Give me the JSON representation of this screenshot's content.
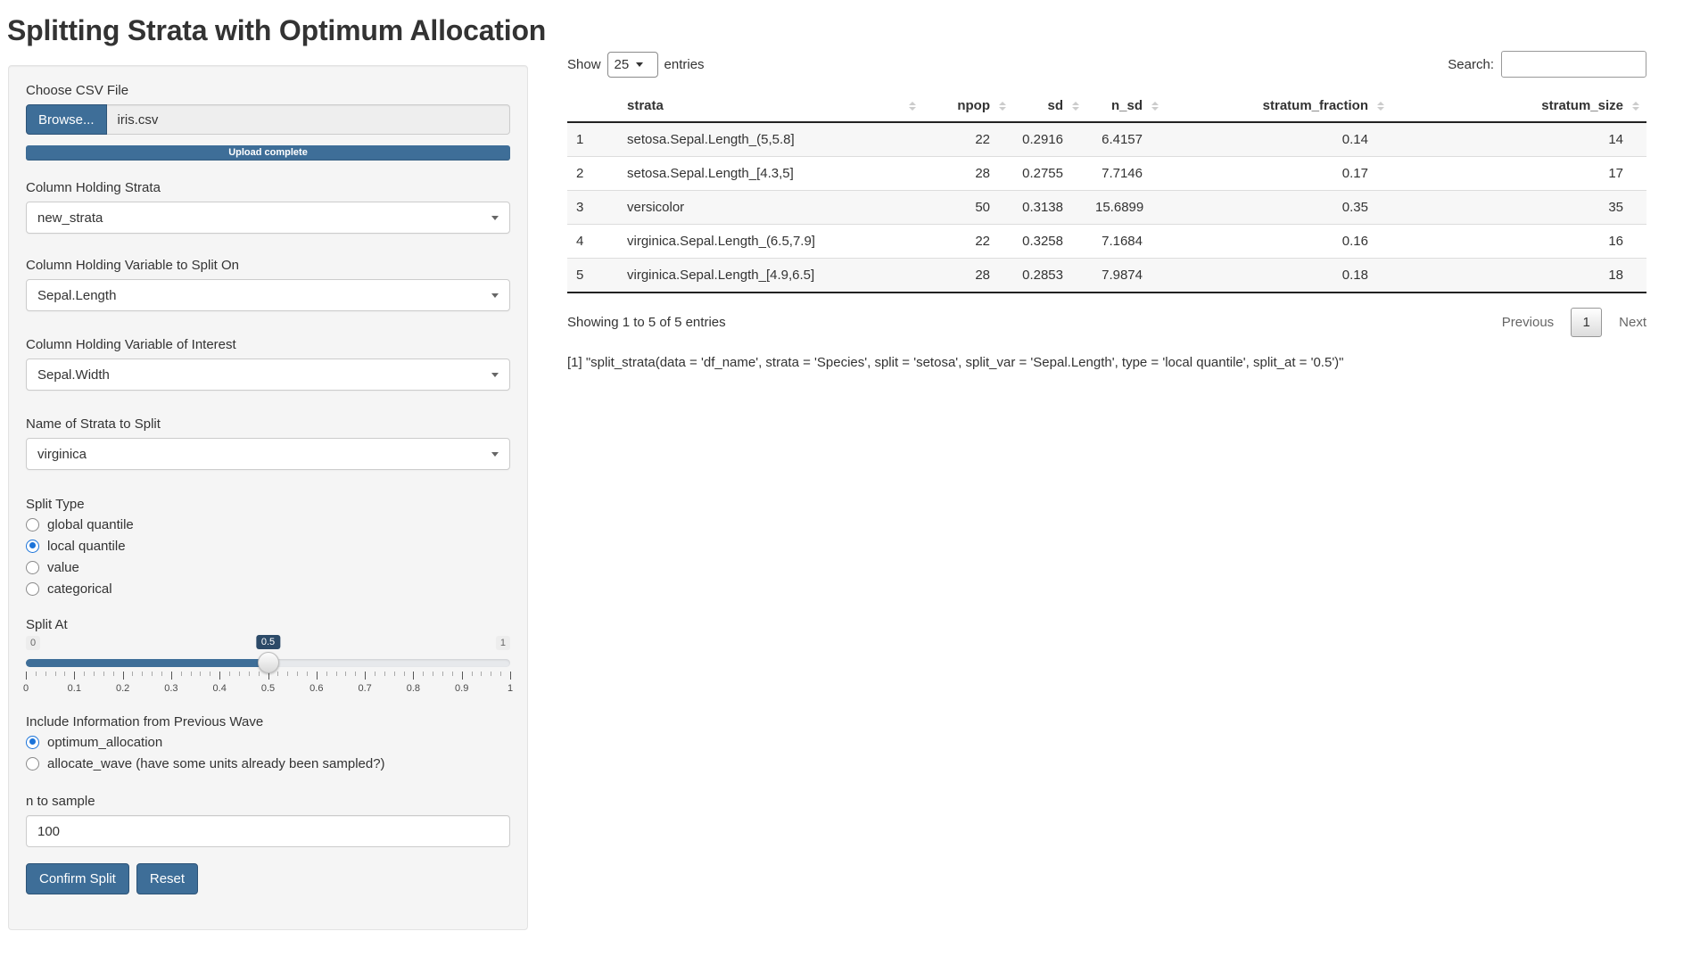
{
  "page": {
    "title": "Splitting Strata with Optimum Allocation"
  },
  "sidebar": {
    "file_upload": {
      "label": "Choose CSV File",
      "browse_label": "Browse...",
      "filename": "iris.csv",
      "progress_text": "Upload complete"
    },
    "selects": [
      {
        "label": "Column Holding Strata",
        "value": "new_strata"
      },
      {
        "label": "Column Holding Variable to Split On",
        "value": "Sepal.Length"
      },
      {
        "label": "Column Holding Variable of Interest",
        "value": "Sepal.Width"
      },
      {
        "label": "Name of Strata to Split",
        "value": "virginica"
      }
    ],
    "split_type": {
      "label": "Split Type",
      "options": [
        {
          "label": "global quantile",
          "selected": false
        },
        {
          "label": "local quantile",
          "selected": true
        },
        {
          "label": "value",
          "selected": false
        },
        {
          "label": "categorical",
          "selected": false
        }
      ]
    },
    "split_at": {
      "label": "Split At",
      "min": "0",
      "max": "1",
      "value": "0.5",
      "percent": 50,
      "ticks": [
        "0",
        "0.1",
        "0.2",
        "0.3",
        "0.4",
        "0.5",
        "0.6",
        "0.7",
        "0.8",
        "0.9",
        "1"
      ]
    },
    "wave": {
      "label": "Include Information from Previous Wave",
      "options": [
        {
          "label": "optimum_allocation",
          "selected": true
        },
        {
          "label": "allocate_wave (have some units already been sampled?)",
          "selected": false
        }
      ]
    },
    "n_to_sample": {
      "label": "n to sample",
      "value": "100"
    },
    "buttons": {
      "confirm": "Confirm Split",
      "reset": "Reset"
    }
  },
  "table": {
    "show_label": "Show",
    "page_length": "25",
    "entries_label": "entries",
    "search_label": "Search:",
    "columns": [
      "",
      "strata",
      "npop",
      "sd",
      "n_sd",
      "stratum_fraction",
      "stratum_size"
    ],
    "rows": [
      [
        "1",
        "setosa.Sepal.Length_(5,5.8]",
        "22",
        "0.2916",
        "6.4157",
        "0.14",
        "14"
      ],
      [
        "2",
        "setosa.Sepal.Length_[4.3,5]",
        "28",
        "0.2755",
        "7.7146",
        "0.17",
        "17"
      ],
      [
        "3",
        "versicolor",
        "50",
        "0.3138",
        "15.6899",
        "0.35",
        "35"
      ],
      [
        "4",
        "virginica.Sepal.Length_(6.5,7.9]",
        "22",
        "0.3258",
        "7.1684",
        "0.16",
        "16"
      ],
      [
        "5",
        "virginica.Sepal.Length_[4.9,6.5]",
        "28",
        "0.2853",
        "7.9874",
        "0.18",
        "18"
      ]
    ],
    "info": "Showing 1 to 5 of 5 entries",
    "pagination": {
      "previous": "Previous",
      "page": "1",
      "next": "Next"
    }
  },
  "console": {
    "output": "[1] \"split_strata(data = 'df_name', strata = 'Species', split = 'setosa', split_var = 'Sepal.Length', type = 'local quantile', split_at = '0.5')\""
  },
  "colors": {
    "primary": "#3e6e98",
    "slider_badge": "#2c4a68",
    "radio_accent": "#1a73d9"
  }
}
